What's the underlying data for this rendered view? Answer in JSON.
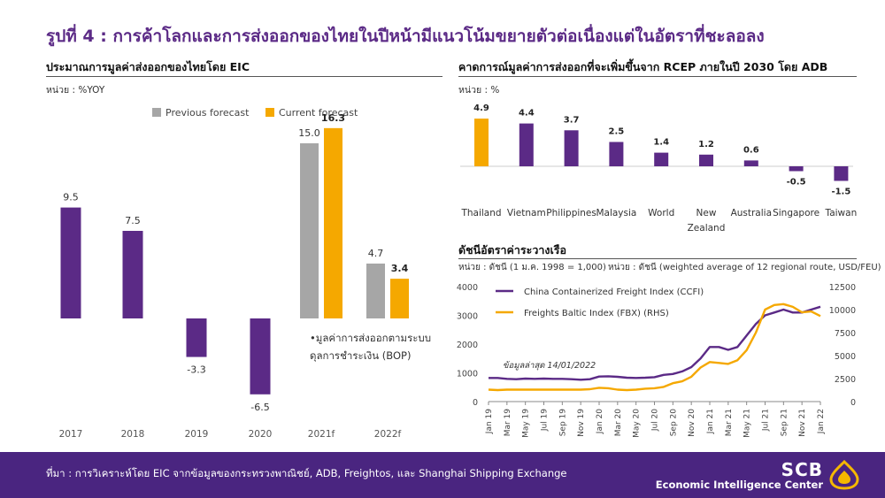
{
  "header": {
    "title": "รูปที่ 4 : การค้าโลกและการส่งออกของไทยในปีหน้ามีแนวโน้มขยายตัวต่อเนื่องแต่ในอัตราที่ชะลอลง"
  },
  "left_panel": {
    "title": "ประมาณการมูลค่าส่งออกของไทยโดย EIC",
    "unit": "หน่วย : %YOY",
    "note_line1": "•มูลค่าการส่งออกตามระบบ",
    "note_line2": "ดุลการชำระเงิน (BOP)"
  },
  "right_top_panel": {
    "title": "คาดการณ์มูลค่าการส่งออกที่จะเพิ่มขึ้นจาก RCEP ภายในปี 2030 โดย ADB",
    "unit": "หน่วย : %"
  },
  "right_bottom_panel": {
    "title": "ดัชนีอัตราค่าระวางเรือ",
    "unit_left": "หน่วย : ดัชนี (1 ม.ค. 1998 = 1,000)",
    "unit_right": "หน่วย : ดัชนี (weighted average of 12 regional route, USD/FEU)",
    "annotation": "ข้อมูลล่าสุด 14/01/2022"
  },
  "footer": {
    "source": "ที่มา : การวิเคราะห์โดย EIC จากข้อมูลของกระทรวงพาณิชย์, ADB, Freightos, และ Shanghai Shipping Exchange",
    "brand": "SCB",
    "brand_sub": "Economic Intelligence Center"
  },
  "colors": {
    "purple": "#5b2a86",
    "orange": "#f5a800",
    "grey": "#a6a6a6"
  },
  "chart_data": [
    {
      "type": "bar",
      "categories": [
        "2017",
        "2018",
        "2019",
        "2020",
        "2021f",
        "2022f"
      ],
      "series": [
        {
          "name": "",
          "values": [
            9.5,
            7.5,
            -3.3,
            -6.5,
            null,
            null
          ]
        },
        {
          "name": "Previous forecast",
          "values": [
            null,
            null,
            null,
            null,
            15.0,
            4.7
          ]
        },
        {
          "name": "Current forecast",
          "values": [
            null,
            null,
            null,
            null,
            16.3,
            3.4
          ]
        }
      ],
      "labels": [
        "9.5",
        "7.5",
        "-3.3",
        "-6.5",
        "15.0",
        "16.3",
        "4.7",
        "3.4"
      ],
      "legend": "top-center"
    },
    {
      "type": "bar",
      "categories": [
        "Thailand",
        "Vietnam",
        "Philippines",
        "Malaysia",
        "World",
        "New Zealand",
        "Australia",
        "Singapore",
        "Taiwan"
      ],
      "values": [
        4.9,
        4.4,
        3.7,
        2.5,
        1.4,
        1.2,
        0.6,
        -0.5,
        -1.5
      ],
      "labels": [
        "4.9",
        "4.4",
        "3.7",
        "2.5",
        "1.4",
        "1.2",
        "0.6",
        "-0.5",
        "-1.5"
      ]
    },
    {
      "type": "line",
      "x": [
        "Jan 19",
        "Feb 19",
        "Mar 19",
        "Apr 19",
        "May 19",
        "Jun 19",
        "Jul 19",
        "Aug 19",
        "Sep 19",
        "Oct 19",
        "Nov 19",
        "Dec 19",
        "Jan 20",
        "Feb 20",
        "Mar 20",
        "Apr 20",
        "May 20",
        "Jun 20",
        "Jul 20",
        "Aug 20",
        "Sep 20",
        "Oct 20",
        "Nov 20",
        "Dec 20",
        "Jan 21",
        "Feb 21",
        "Mar 21",
        "Apr 21",
        "May 21",
        "Jun 21",
        "Jul 21",
        "Aug 21",
        "Sep 21",
        "Oct 21",
        "Nov 21",
        "Dec 21",
        "Jan 22"
      ],
      "x_ticks": [
        "Jan 19",
        "Mar 19",
        "May 19",
        "Jul 19",
        "Sep 19",
        "Nov 19",
        "Jan 20",
        "Mar 20",
        "May 20",
        "Jul 20",
        "Sep 20",
        "Nov 20",
        "Jan 21",
        "Mar 21",
        "May 21",
        "Jul 21",
        "Sep 21",
        "Nov 21",
        "Jan 22"
      ],
      "series": [
        {
          "name": "China Containerized Freight Index (CCFI)",
          "axis": "left",
          "values": [
            820,
            820,
            790,
            780,
            800,
            790,
            800,
            790,
            790,
            780,
            760,
            780,
            870,
            880,
            860,
            830,
            820,
            830,
            850,
            930,
            960,
            1050,
            1200,
            1500,
            1900,
            1900,
            1800,
            1900,
            2300,
            2700,
            3000,
            3100,
            3200,
            3100,
            3100,
            3200,
            3300
          ]
        },
        {
          "name": "Freights Baltic Index (FBX) (RHS)",
          "axis": "right",
          "values": [
            1300,
            1250,
            1300,
            1300,
            1300,
            1300,
            1300,
            1300,
            1300,
            1300,
            1300,
            1350,
            1500,
            1450,
            1300,
            1250,
            1300,
            1400,
            1450,
            1600,
            2000,
            2200,
            2700,
            3700,
            4300,
            4200,
            4100,
            4500,
            5600,
            7500,
            10000,
            10500,
            10600,
            10300,
            9700,
            9800,
            9300
          ]
        }
      ],
      "ylim_left": [
        0,
        4000
      ],
      "ylim_right": [
        0,
        12500
      ],
      "yticks_left": [
        "0",
        "1000",
        "2000",
        "3000",
        "4000"
      ],
      "yticks_right": [
        "0",
        "2500",
        "5000",
        "7500",
        "10000",
        "12500"
      ]
    }
  ]
}
